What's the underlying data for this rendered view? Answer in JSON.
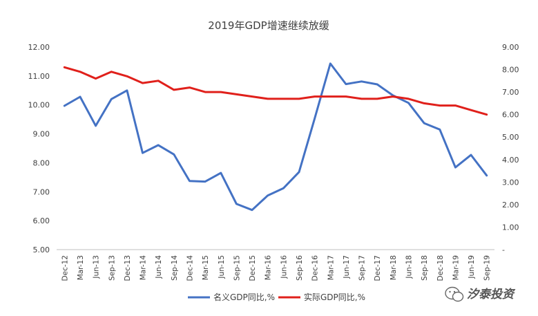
{
  "chart_data": {
    "type": "line",
    "title": "2019年GDP增速继续放缓",
    "categories": [
      "Dec-12",
      "Mar-13",
      "Jun-13",
      "Sep-13",
      "Dec-13",
      "Mar-14",
      "Jun-14",
      "Sep-14",
      "Dec-14",
      "Mar-15",
      "Jun-15",
      "Sep-15",
      "Dec-15",
      "Mar-16",
      "Jun-16",
      "Sep-16",
      "Dec-16",
      "Mar-17",
      "Jun-17",
      "Sep-17",
      "Dec-17",
      "Mar-18",
      "Jun-18",
      "Sep-18",
      "Dec-18",
      "Mar-19",
      "Jun-19",
      "Sep-19"
    ],
    "y_left": {
      "min": 5,
      "max": 12,
      "tick_labels": [
        "5.00",
        "6.00",
        "7.00",
        "8.00",
        "9.00",
        "10.00",
        "11.00",
        "12.00"
      ]
    },
    "y_right": {
      "min": 0,
      "max": 9,
      "tick_labels": [
        "-",
        "1.00",
        "2.00",
        "3.00",
        "4.00",
        "5.00",
        "6.00",
        "7.00",
        "8.00",
        "9.00"
      ]
    },
    "series": [
      {
        "name": "名义GDP同比,%",
        "axis": "left",
        "color": "#4472c4",
        "values": [
          9.97,
          10.28,
          9.28,
          10.2,
          10.5,
          8.34,
          8.61,
          8.29,
          7.37,
          7.35,
          7.65,
          6.58,
          6.37,
          6.87,
          7.12,
          7.68,
          9.53,
          11.43,
          10.72,
          10.81,
          10.71,
          10.33,
          10.07,
          9.37,
          9.15,
          7.84,
          8.27,
          7.56
        ]
      },
      {
        "name": "实际GDP同比,%",
        "axis": "right",
        "color": "#e0201b",
        "values": [
          8.1,
          7.9,
          7.6,
          7.9,
          7.7,
          7.4,
          7.5,
          7.1,
          7.2,
          7.0,
          7.0,
          6.9,
          6.8,
          6.7,
          6.7,
          6.7,
          6.8,
          6.8,
          6.8,
          6.7,
          6.7,
          6.8,
          6.7,
          6.5,
          6.4,
          6.4,
          6.2,
          6.0
        ]
      }
    ],
    "grid": false,
    "legend": "bottom"
  },
  "watermark": {
    "icon": "wechat-icon",
    "text": "汐泰投资"
  }
}
